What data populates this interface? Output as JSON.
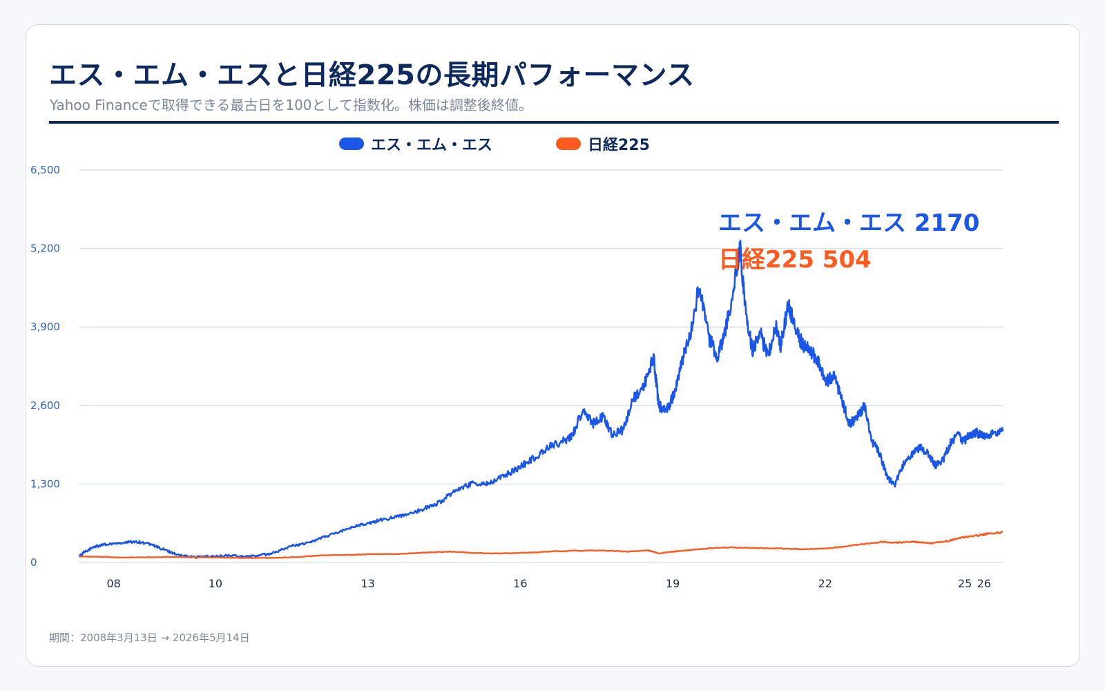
{
  "header": {
    "title": "エス・エム・エスと日経225の長期パフォーマンス",
    "subtitle": "Yahoo Financeで取得できる最古日を100として指数化。株価は調整後終値。"
  },
  "legend": {
    "items": [
      {
        "label": "エス・エム・エス",
        "color": "#1a56e8"
      },
      {
        "label": "日経225",
        "color": "#ff5a1f"
      }
    ]
  },
  "footer": {
    "period": "期間：2008年3月13日 → 2026年5月14日"
  },
  "chart_data": {
    "type": "line",
    "title": "エス・エム・エスと日経225の長期パフォーマンス",
    "subtitle": "Yahoo Financeで取得できる最古日を100として指数化。株価は調整後終値。",
    "xlabel": "",
    "ylabel": "",
    "xlim": [
      2008.2,
      2026.37
    ],
    "ylim": [
      0,
      6500
    ],
    "y_ticks": [
      0,
      1300,
      2600,
      3900,
      5200,
      6500
    ],
    "y_tick_labels": [
      "0",
      "1,300",
      "2,600",
      "3,900",
      "5,200",
      "6,500"
    ],
    "x_ticks": [
      2008.875,
      2010.875,
      2013.875,
      2016.875,
      2019.875,
      2022.875,
      2025.625,
      2026.0
    ],
    "x_tick_labels": [
      "08",
      "10",
      "13",
      "16",
      "19",
      "22",
      "25",
      "26"
    ],
    "grid": true,
    "legend_position": "top-center",
    "series": [
      {
        "name": "エス・エム・エス",
        "color": "#1a56e8",
        "x": [
          2008.2,
          2008.3,
          2008.5,
          2008.7,
          2009.0,
          2009.3,
          2009.6,
          2009.9,
          2010.2,
          2010.5,
          2010.8,
          2011.2,
          2011.6,
          2012.0,
          2012.4,
          2012.7,
          2013.0,
          2013.3,
          2013.6,
          2013.9,
          2014.1,
          2014.4,
          2014.7,
          2015.0,
          2015.3,
          2015.6,
          2015.9,
          2016.2,
          2016.5,
          2016.8,
          2017.1,
          2017.4,
          2017.7,
          2017.9,
          2018.1,
          2018.3,
          2018.5,
          2018.7,
          2018.9,
          2019.1,
          2019.3,
          2019.5,
          2019.6,
          2019.75,
          2019.9,
          2020.05,
          2020.2,
          2020.4,
          2020.6,
          2020.75,
          2020.9,
          2021.05,
          2021.2,
          2021.3,
          2021.45,
          2021.6,
          2021.75,
          2021.9,
          2022.0,
          2022.15,
          2022.3,
          2022.45,
          2022.6,
          2022.75,
          2022.9,
          2023.05,
          2023.2,
          2023.35,
          2023.5,
          2023.65,
          2023.8,
          2023.95,
          2024.1,
          2024.25,
          2024.45,
          2024.6,
          2024.75,
          2024.9,
          2025.05,
          2025.2,
          2025.35,
          2025.5,
          2025.6,
          2025.7,
          2025.85,
          2026.0,
          2026.2,
          2026.37
        ],
        "y": [
          100,
          180,
          260,
          300,
          320,
          350,
          300,
          200,
          110,
          90,
          100,
          110,
          100,
          150,
          280,
          320,
          420,
          500,
          600,
          650,
          700,
          750,
          800,
          900,
          1000,
          1200,
          1300,
          1300,
          1400,
          1550,
          1700,
          1900,
          2000,
          2100,
          2500,
          2300,
          2400,
          2100,
          2200,
          2700,
          2900,
          3400,
          2600,
          2500,
          2800,
          3300,
          3700,
          4600,
          3700,
          3400,
          3800,
          4400,
          5250,
          4200,
          3500,
          3800,
          3400,
          3900,
          3600,
          4300,
          3800,
          3600,
          3500,
          3300,
          3000,
          3100,
          2700,
          2300,
          2400,
          2600,
          2000,
          1800,
          1400,
          1300,
          1700,
          1800,
          1900,
          1800,
          1600,
          1700,
          2000,
          2100,
          2000,
          2100,
          2150,
          2100,
          2150,
          2170
        ]
      },
      {
        "name": "日経225",
        "color": "#ff5a1f",
        "x": [
          2008.2,
          2008.6,
          2009.0,
          2009.5,
          2010.0,
          2010.5,
          2011.0,
          2011.5,
          2012.0,
          2012.5,
          2013.0,
          2013.5,
          2014.0,
          2014.5,
          2015.0,
          2015.5,
          2016.0,
          2016.5,
          2017.0,
          2017.5,
          2018.0,
          2018.5,
          2019.0,
          2019.4,
          2019.6,
          2019.8,
          2020.0,
          2020.5,
          2021.0,
          2021.5,
          2022.0,
          2022.5,
          2023.0,
          2023.5,
          2024.0,
          2024.3,
          2024.6,
          2024.8,
          2025.0,
          2025.3,
          2025.6,
          2025.9,
          2026.1,
          2026.37
        ],
        "y": [
          100,
          95,
          80,
          85,
          90,
          85,
          80,
          75,
          75,
          90,
          120,
          125,
          140,
          140,
          165,
          180,
          155,
          150,
          160,
          185,
          195,
          200,
          180,
          200,
          150,
          170,
          190,
          230,
          250,
          240,
          230,
          220,
          240,
          290,
          340,
          330,
          345,
          330,
          320,
          360,
          420,
          450,
          480,
          504
        ]
      }
    ],
    "annotations": [
      {
        "text": "エス・エム・エス 2170",
        "color": "#1a56e8"
      },
      {
        "text": "日経225 504",
        "color": "#ff5a1f"
      }
    ]
  }
}
